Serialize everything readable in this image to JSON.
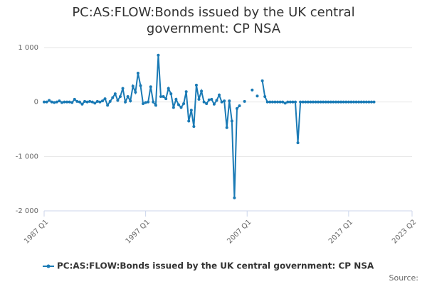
{
  "chart_data": {
    "type": "line",
    "title": "PC:AS:FLOW:Bonds issued by the UK central government: CP NSA",
    "source": "Source:",
    "legend": "bottom",
    "grid": true,
    "xlim": [
      1987,
      2023.25
    ],
    "xticks": [
      {
        "value": 1987,
        "label": "1987 Q1"
      },
      {
        "value": 1997,
        "label": "1997 Q1"
      },
      {
        "value": 2007,
        "label": "2007 Q1"
      },
      {
        "value": 2017,
        "label": "2017 Q1"
      },
      {
        "value": 2023.25,
        "label": "2023 Q2"
      }
    ],
    "ylim": [
      -2000,
      1000
    ],
    "yticks": [
      {
        "value": -2000,
        "label": "-2 000"
      },
      {
        "value": -1000,
        "label": "-1 000"
      },
      0,
      {
        "value": 1000,
        "label": "1 000"
      }
    ],
    "x": [
      1987,
      1987.25,
      1987.5,
      1987.75,
      1988,
      1988.25,
      1988.5,
      1988.75,
      1989,
      1989.25,
      1989.5,
      1989.75,
      1990,
      1990.25,
      1990.5,
      1990.75,
      1991,
      1991.25,
      1991.5,
      1991.75,
      1992,
      1992.25,
      1992.5,
      1992.75,
      1993,
      1993.25,
      1993.5,
      1993.75,
      1994,
      1994.25,
      1994.5,
      1994.75,
      1995,
      1995.25,
      1995.5,
      1995.75,
      1996,
      1996.25,
      1996.5,
      1996.75,
      1997,
      1997.25,
      1997.5,
      1997.75,
      1998,
      1998.25,
      1998.5,
      1998.75,
      1999,
      1999.25,
      1999.5,
      1999.75,
      2000,
      2000.25,
      2000.5,
      2000.75,
      2001,
      2001.25,
      2001.5,
      2001.75,
      2002,
      2002.25,
      2002.5,
      2002.75,
      2003,
      2003.25,
      2003.5,
      2003.75,
      2004,
      2004.25,
      2004.5,
      2004.75,
      2005,
      2005.25,
      2005.5,
      2005.75,
      2006,
      2006.25,
      2006.5,
      2006.75,
      2007,
      2007.25,
      2007.5,
      2007.75,
      2008,
      2008.25,
      2008.5,
      2008.75,
      2009,
      2009.25,
      2009.5,
      2009.75,
      2010,
      2010.25,
      2010.5,
      2010.75,
      2011,
      2011.25,
      2011.5,
      2011.75,
      2012,
      2012.25,
      2012.5,
      2012.75,
      2013,
      2013.25,
      2013.5,
      2013.75,
      2014,
      2014.25,
      2014.5,
      2014.75,
      2015,
      2015.25,
      2015.5,
      2015.75,
      2016,
      2016.25,
      2016.5,
      2016.75,
      2017,
      2017.25,
      2017.5,
      2017.75,
      2018,
      2018.25,
      2018.5,
      2018.75,
      2019,
      2019.25,
      2019.5
    ],
    "series": [
      {
        "name": "PC:AS:FLOW:Bonds issued by the UK central government: CP NSA",
        "color": "#1a7ab5",
        "values": [
          0,
          0,
          30,
          0,
          -10,
          0,
          20,
          -10,
          0,
          0,
          0,
          -10,
          50,
          10,
          0,
          -40,
          10,
          0,
          10,
          0,
          -20,
          10,
          0,
          20,
          60,
          -60,
          10,
          80,
          150,
          30,
          100,
          250,
          0,
          100,
          20,
          290,
          180,
          530,
          300,
          -30,
          -10,
          0,
          280,
          0,
          -60,
          860,
          100,
          100,
          60,
          250,
          150,
          -100,
          50,
          -50,
          -100,
          -30,
          190,
          -350,
          -150,
          -450,
          310,
          50,
          200,
          0,
          -30,
          40,
          50,
          -40,
          30,
          130,
          0,
          20,
          -470,
          20,
          -350,
          -1760,
          -120,
          -70,
          null,
          10,
          null,
          null,
          220,
          null,
          110,
          null,
          390,
          100,
          0,
          0,
          0,
          0,
          0,
          0,
          0,
          -20,
          0,
          0,
          0,
          0,
          -750,
          0,
          0,
          0,
          0,
          0,
          0,
          0,
          0,
          0,
          0,
          0,
          0,
          0,
          0,
          0,
          0,
          0,
          0,
          0,
          0,
          0,
          0,
          0,
          0,
          0,
          0,
          0,
          0,
          0,
          0
        ]
      }
    ]
  }
}
